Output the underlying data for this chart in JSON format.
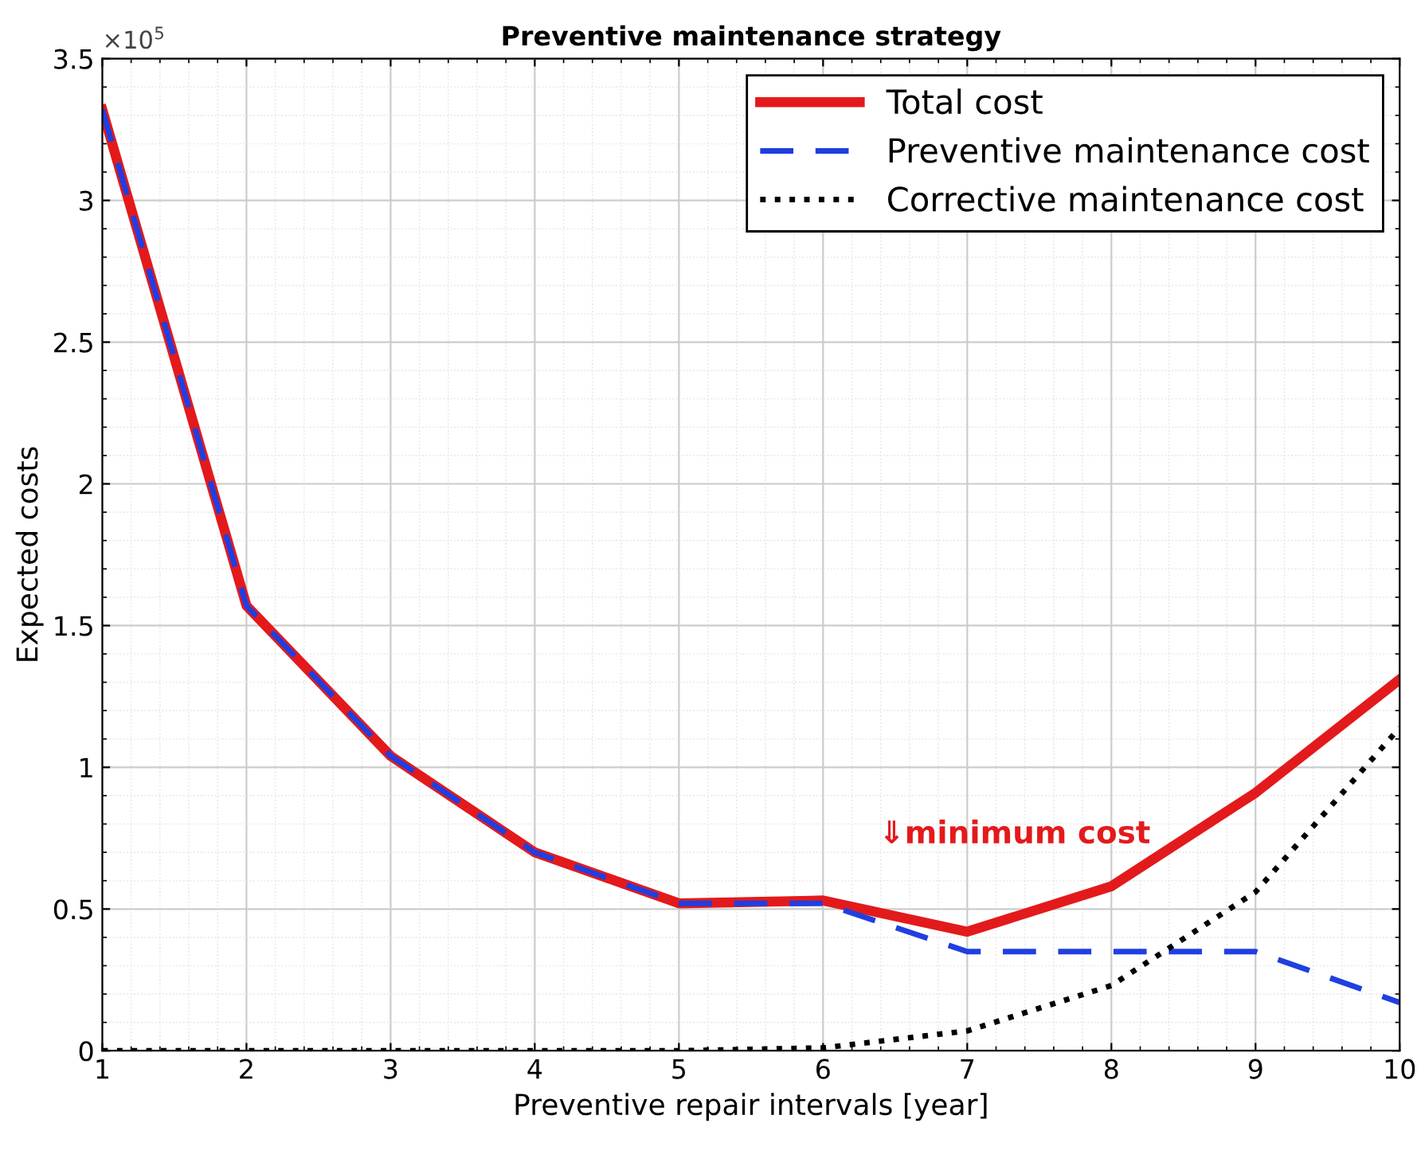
{
  "chart_data": {
    "type": "line",
    "title": "Preventive maintenance strategy",
    "xlabel": "Preventive repair intervals [year]",
    "ylabel": "Expected costs",
    "x": [
      1,
      2,
      3,
      4,
      5,
      6,
      7,
      8,
      9,
      10
    ],
    "series": [
      {
        "name": "Total cost",
        "color": "#e31a1c",
        "line_style": "solid",
        "values": [
          3.32,
          1.57,
          1.04,
          0.7,
          0.52,
          0.53,
          0.42,
          0.58,
          0.91,
          1.31
        ]
      },
      {
        "name": "Preventive maintenance cost",
        "color": "#1f3fe0",
        "line_style": "dashed",
        "values": [
          3.32,
          1.57,
          1.04,
          0.7,
          0.52,
          0.52,
          0.35,
          0.35,
          0.35,
          0.17
        ]
      },
      {
        "name": "Corrective maintenance cost",
        "color": "#000000",
        "line_style": "dotted",
        "values": [
          0,
          0,
          0,
          0,
          0,
          0.01,
          0.07,
          0.23,
          0.56,
          1.14
        ]
      }
    ],
    "xlim": [
      1,
      10
    ],
    "xticks": [
      1,
      2,
      3,
      4,
      5,
      6,
      7,
      8,
      9,
      10
    ],
    "ylim": [
      0,
      3.5
    ],
    "yticks": [
      0,
      0.5,
      1,
      1.5,
      2,
      2.5,
      3,
      3.5
    ],
    "annotations": [
      "×10$^{5}$",
      {
        "text": "⇓minimum cost",
        "x": 7,
        "y": 0.42
      }
    ],
    "grid": true,
    "legend": "top right",
    "marker": "none"
  }
}
